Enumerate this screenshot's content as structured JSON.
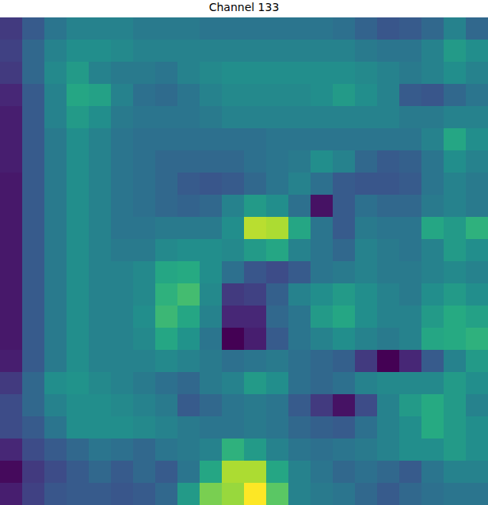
{
  "chart_data": {
    "type": "heatmap",
    "title": "Channel 133",
    "tick_labels": false,
    "cells": [
      [
        0.2,
        0.3,
        0.4,
        0.45,
        0.45,
        0.45,
        0.42,
        0.42,
        0.42,
        0.4,
        0.4,
        0.4,
        0.4,
        0.4,
        0.4,
        0.38,
        0.33,
        0.28,
        0.3,
        0.35,
        0.45,
        0.35
      ],
      [
        0.22,
        0.35,
        0.45,
        0.5,
        0.5,
        0.48,
        0.45,
        0.45,
        0.45,
        0.45,
        0.45,
        0.45,
        0.45,
        0.45,
        0.45,
        0.45,
        0.42,
        0.4,
        0.4,
        0.45,
        0.55,
        0.5
      ],
      [
        0.2,
        0.35,
        0.48,
        0.55,
        0.45,
        0.42,
        0.42,
        0.4,
        0.45,
        0.48,
        0.5,
        0.5,
        0.5,
        0.5,
        0.5,
        0.5,
        0.48,
        0.45,
        0.42,
        0.45,
        0.5,
        0.45
      ],
      [
        0.15,
        0.3,
        0.45,
        0.6,
        0.58,
        0.45,
        0.38,
        0.36,
        0.4,
        0.45,
        0.48,
        0.48,
        0.48,
        0.48,
        0.5,
        0.55,
        0.5,
        0.45,
        0.3,
        0.28,
        0.35,
        0.4
      ],
      [
        0.12,
        0.3,
        0.45,
        0.55,
        0.5,
        0.42,
        0.4,
        0.4,
        0.4,
        0.42,
        0.45,
        0.45,
        0.45,
        0.45,
        0.45,
        0.45,
        0.45,
        0.45,
        0.42,
        0.42,
        0.45,
        0.45
      ],
      [
        0.12,
        0.3,
        0.42,
        0.5,
        0.45,
        0.4,
        0.38,
        0.38,
        0.38,
        0.38,
        0.38,
        0.38,
        0.4,
        0.4,
        0.4,
        0.4,
        0.4,
        0.4,
        0.4,
        0.45,
        0.6,
        0.5
      ],
      [
        0.12,
        0.3,
        0.42,
        0.5,
        0.45,
        0.4,
        0.38,
        0.35,
        0.35,
        0.35,
        0.35,
        0.38,
        0.4,
        0.42,
        0.5,
        0.45,
        0.35,
        0.3,
        0.32,
        0.4,
        0.5,
        0.45
      ],
      [
        0.1,
        0.3,
        0.42,
        0.5,
        0.45,
        0.4,
        0.38,
        0.35,
        0.3,
        0.28,
        0.3,
        0.35,
        0.4,
        0.45,
        0.38,
        0.3,
        0.28,
        0.28,
        0.3,
        0.4,
        0.45,
        0.42
      ],
      [
        0.1,
        0.3,
        0.42,
        0.5,
        0.45,
        0.4,
        0.38,
        0.35,
        0.33,
        0.35,
        0.45,
        0.55,
        0.5,
        0.38,
        0.08,
        0.3,
        0.38,
        0.35,
        0.35,
        0.42,
        0.45,
        0.42
      ],
      [
        0.1,
        0.3,
        0.42,
        0.5,
        0.45,
        0.4,
        0.4,
        0.42,
        0.42,
        0.42,
        0.5,
        0.9,
        0.88,
        0.6,
        0.4,
        0.3,
        0.42,
        0.4,
        0.4,
        0.6,
        0.55,
        0.65
      ],
      [
        0.1,
        0.3,
        0.42,
        0.5,
        0.45,
        0.42,
        0.42,
        0.48,
        0.5,
        0.5,
        0.48,
        0.55,
        0.6,
        0.45,
        0.4,
        0.35,
        0.45,
        0.42,
        0.4,
        0.45,
        0.55,
        0.5
      ],
      [
        0.1,
        0.3,
        0.42,
        0.5,
        0.45,
        0.45,
        0.48,
        0.6,
        0.62,
        0.5,
        0.38,
        0.28,
        0.25,
        0.3,
        0.4,
        0.42,
        0.45,
        0.42,
        0.42,
        0.45,
        0.48,
        0.45
      ],
      [
        0.1,
        0.3,
        0.42,
        0.5,
        0.45,
        0.45,
        0.48,
        0.65,
        0.7,
        0.48,
        0.2,
        0.22,
        0.32,
        0.45,
        0.5,
        0.55,
        0.5,
        0.45,
        0.42,
        0.5,
        0.55,
        0.5
      ],
      [
        0.1,
        0.3,
        0.42,
        0.5,
        0.45,
        0.45,
        0.5,
        0.68,
        0.6,
        0.45,
        0.15,
        0.15,
        0.35,
        0.4,
        0.55,
        0.6,
        0.5,
        0.45,
        0.45,
        0.55,
        0.62,
        0.58
      ],
      [
        0.1,
        0.3,
        0.42,
        0.5,
        0.45,
        0.45,
        0.48,
        0.6,
        0.52,
        0.4,
        0.02,
        0.12,
        0.3,
        0.4,
        0.45,
        0.5,
        0.45,
        0.42,
        0.45,
        0.6,
        0.62,
        0.65
      ],
      [
        0.12,
        0.3,
        0.42,
        0.5,
        0.45,
        0.45,
        0.45,
        0.48,
        0.45,
        0.42,
        0.38,
        0.4,
        0.42,
        0.38,
        0.35,
        0.32,
        0.2,
        0.02,
        0.15,
        0.3,
        0.45,
        0.55
      ],
      [
        0.2,
        0.35,
        0.5,
        0.52,
        0.48,
        0.45,
        0.42,
        0.38,
        0.35,
        0.42,
        0.45,
        0.55,
        0.5,
        0.38,
        0.35,
        0.38,
        0.45,
        0.48,
        0.48,
        0.48,
        0.55,
        0.5
      ],
      [
        0.25,
        0.35,
        0.45,
        0.5,
        0.5,
        0.48,
        0.45,
        0.42,
        0.3,
        0.35,
        0.4,
        0.42,
        0.4,
        0.3,
        0.2,
        0.08,
        0.25,
        0.45,
        0.55,
        0.62,
        0.55,
        0.45
      ],
      [
        0.25,
        0.3,
        0.4,
        0.5,
        0.5,
        0.5,
        0.48,
        0.45,
        0.42,
        0.4,
        0.4,
        0.42,
        0.4,
        0.35,
        0.32,
        0.3,
        0.38,
        0.45,
        0.5,
        0.62,
        0.55,
        0.5
      ],
      [
        0.15,
        0.25,
        0.3,
        0.35,
        0.4,
        0.38,
        0.35,
        0.4,
        0.42,
        0.45,
        0.65,
        0.55,
        0.45,
        0.4,
        0.38,
        0.4,
        0.42,
        0.45,
        0.5,
        0.5,
        0.55,
        0.5
      ],
      [
        0.05,
        0.2,
        0.25,
        0.3,
        0.35,
        0.3,
        0.35,
        0.3,
        0.4,
        0.6,
        0.88,
        0.88,
        0.6,
        0.45,
        0.4,
        0.35,
        0.38,
        0.35,
        0.3,
        0.4,
        0.45,
        0.45
      ],
      [
        0.12,
        0.22,
        0.28,
        0.3,
        0.3,
        0.28,
        0.3,
        0.35,
        0.55,
        0.8,
        0.85,
        1.0,
        0.75,
        0.45,
        0.42,
        0.4,
        0.35,
        0.3,
        0.35,
        0.38,
        0.4,
        0.4
      ]
    ]
  }
}
